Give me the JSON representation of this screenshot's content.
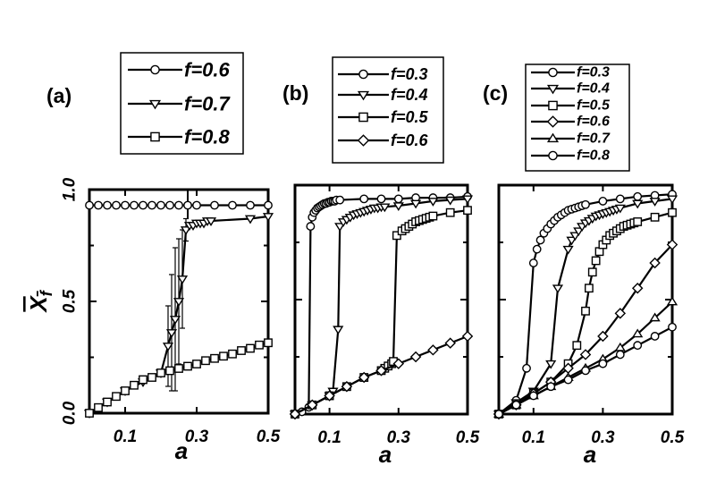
{
  "chart_data": [
    {
      "panel_label": "(a)",
      "type": "line",
      "xlabel": "a",
      "ylabel": "X_f",
      "xlim": [
        0,
        0.5
      ],
      "ylim": [
        0,
        1.0
      ],
      "xticks": [
        "0.1",
        "0.3",
        "0.5"
      ],
      "yticks": [
        "0.0",
        "0.5",
        "1.0"
      ],
      "legend": "top, outside the axes, boxed",
      "series": [
        {
          "name": "f=0.6",
          "marker": "circle",
          "x": [
            0,
            0.025,
            0.05,
            0.075,
            0.1,
            0.125,
            0.15,
            0.175,
            0.2,
            0.225,
            0.25,
            0.275,
            0.3,
            0.35,
            0.4,
            0.45,
            0.5
          ],
          "y": [
            0.93,
            0.93,
            0.93,
            0.93,
            0.93,
            0.93,
            0.93,
            0.93,
            0.93,
            0.93,
            0.93,
            0.93,
            0.93,
            0.93,
            0.93,
            0.93,
            0.93
          ]
        },
        {
          "name": "f=0.7",
          "marker": "triangle-down",
          "x": [
            0,
            0.05,
            0.1,
            0.15,
            0.2,
            0.22,
            0.23,
            0.24,
            0.25,
            0.26,
            0.27,
            0.28,
            0.29,
            0.3,
            0.31,
            0.32,
            0.33,
            0.34,
            0.45,
            0.5
          ],
          "y": [
            0,
            0.05,
            0.1,
            0.14,
            0.18,
            0.3,
            0.36,
            0.42,
            0.5,
            0.6,
            0.82,
            0.84,
            0.84,
            0.85,
            0.85,
            0.85,
            0.86,
            0.86,
            0.87,
            0.88
          ],
          "error": [
            0,
            0,
            0,
            0,
            0,
            0.18,
            0.26,
            0.32,
            0.28,
            0.22,
            0.05,
            0,
            0,
            0,
            0,
            0,
            0,
            0,
            0,
            0
          ]
        },
        {
          "name": "f=0.8",
          "marker": "square",
          "x": [
            0,
            0.025,
            0.05,
            0.075,
            0.1,
            0.125,
            0.15,
            0.175,
            0.2,
            0.225,
            0.25,
            0.275,
            0.3,
            0.325,
            0.35,
            0.375,
            0.4,
            0.425,
            0.45,
            0.475,
            0.5
          ],
          "y": [
            0,
            0.025,
            0.05,
            0.075,
            0.1,
            0.125,
            0.15,
            0.16,
            0.18,
            0.19,
            0.2,
            0.21,
            0.22,
            0.235,
            0.245,
            0.255,
            0.265,
            0.28,
            0.29,
            0.305,
            0.315
          ]
        }
      ]
    },
    {
      "panel_label": "(b)",
      "type": "line",
      "xlabel": "a",
      "xlim": [
        0,
        0.5
      ],
      "ylim": [
        0,
        1.0
      ],
      "xticks": [
        "0.1",
        "0.3",
        "0.5"
      ],
      "legend": "top, outside the axes, boxed",
      "series": [
        {
          "name": "f=0.3",
          "marker": "circle",
          "x": [
            0,
            0.02,
            0.04,
            0.045,
            0.05,
            0.055,
            0.06,
            0.065,
            0.07,
            0.075,
            0.08,
            0.085,
            0.09,
            0.095,
            0.1,
            0.105,
            0.11,
            0.115,
            0.12,
            0.13,
            0.2,
            0.25,
            0.3,
            0.35,
            0.4,
            0.45,
            0.5
          ],
          "y": [
            0,
            0.01,
            0.03,
            0.82,
            0.86,
            0.88,
            0.89,
            0.9,
            0.905,
            0.91,
            0.915,
            0.92,
            0.92,
            0.925,
            0.925,
            0.93,
            0.93,
            0.93,
            0.935,
            0.935,
            0.94,
            0.94,
            0.94,
            0.945,
            0.945,
            0.945,
            0.95
          ]
        },
        {
          "name": "f=0.4",
          "marker": "triangle-down",
          "x": [
            0,
            0.05,
            0.1,
            0.11,
            0.125,
            0.13,
            0.14,
            0.15,
            0.16,
            0.17,
            0.18,
            0.19,
            0.2,
            0.21,
            0.22,
            0.23,
            0.24,
            0.25,
            0.26,
            0.3,
            0.35,
            0.4,
            0.45,
            0.5
          ],
          "y": [
            0,
            0.04,
            0.08,
            0.1,
            0.37,
            0.82,
            0.84,
            0.85,
            0.86,
            0.87,
            0.875,
            0.88,
            0.885,
            0.89,
            0.895,
            0.9,
            0.9,
            0.905,
            0.905,
            0.91,
            0.92,
            0.93,
            0.935,
            0.94
          ]
        },
        {
          "name": "f=0.5",
          "marker": "square",
          "x": [
            0,
            0.05,
            0.1,
            0.15,
            0.2,
            0.25,
            0.26,
            0.27,
            0.28,
            0.285,
            0.295,
            0.31,
            0.32,
            0.33,
            0.34,
            0.35,
            0.36,
            0.37,
            0.38,
            0.39,
            0.4,
            0.45,
            0.5
          ],
          "y": [
            0,
            0.04,
            0.08,
            0.12,
            0.16,
            0.19,
            0.2,
            0.21,
            0.22,
            0.23,
            0.78,
            0.8,
            0.81,
            0.82,
            0.83,
            0.84,
            0.845,
            0.85,
            0.855,
            0.86,
            0.865,
            0.88,
            0.89
          ]
        },
        {
          "name": "f=0.6",
          "marker": "diamond",
          "x": [
            0,
            0.05,
            0.1,
            0.15,
            0.2,
            0.25,
            0.3,
            0.35,
            0.4,
            0.45,
            0.5
          ],
          "y": [
            0,
            0.04,
            0.08,
            0.12,
            0.16,
            0.19,
            0.22,
            0.25,
            0.28,
            0.31,
            0.34
          ]
        }
      ]
    },
    {
      "panel_label": "(c)",
      "type": "line",
      "xlabel": "a",
      "xlim": [
        0,
        0.5
      ],
      "ylim": [
        0,
        1.0
      ],
      "xticks": [
        "0.1",
        "0.3",
        "0.5"
      ],
      "legend": "top, outside the axes, boxed",
      "series": [
        {
          "name": "f=0.3",
          "marker": "circle",
          "x": [
            0,
            0.05,
            0.08,
            0.1,
            0.11,
            0.12,
            0.13,
            0.14,
            0.15,
            0.16,
            0.17,
            0.18,
            0.19,
            0.2,
            0.21,
            0.22,
            0.23,
            0.24,
            0.25,
            0.3,
            0.35,
            0.4,
            0.45,
            0.5
          ],
          "y": [
            0,
            0.06,
            0.2,
            0.66,
            0.72,
            0.76,
            0.79,
            0.81,
            0.83,
            0.845,
            0.86,
            0.87,
            0.88,
            0.89,
            0.895,
            0.9,
            0.905,
            0.91,
            0.915,
            0.93,
            0.94,
            0.95,
            0.955,
            0.96
          ]
        },
        {
          "name": "f=0.4",
          "marker": "triangle-down",
          "x": [
            0,
            0.05,
            0.1,
            0.15,
            0.17,
            0.2,
            0.21,
            0.22,
            0.23,
            0.24,
            0.25,
            0.26,
            0.27,
            0.28,
            0.29,
            0.3,
            0.31,
            0.32,
            0.33,
            0.34,
            0.35,
            0.4,
            0.45,
            0.5
          ],
          "y": [
            0,
            0.05,
            0.1,
            0.22,
            0.55,
            0.72,
            0.76,
            0.78,
            0.8,
            0.82,
            0.835,
            0.845,
            0.855,
            0.865,
            0.87,
            0.875,
            0.88,
            0.885,
            0.89,
            0.895,
            0.9,
            0.92,
            0.93,
            0.94
          ]
        },
        {
          "name": "f=0.5",
          "marker": "square",
          "x": [
            0,
            0.05,
            0.1,
            0.15,
            0.2,
            0.225,
            0.25,
            0.26,
            0.27,
            0.28,
            0.29,
            0.3,
            0.31,
            0.32,
            0.33,
            0.34,
            0.35,
            0.36,
            0.37,
            0.38,
            0.39,
            0.4,
            0.45,
            0.5
          ],
          "y": [
            0,
            0.04,
            0.09,
            0.14,
            0.22,
            0.3,
            0.45,
            0.55,
            0.62,
            0.67,
            0.71,
            0.74,
            0.76,
            0.78,
            0.79,
            0.8,
            0.81,
            0.82,
            0.825,
            0.83,
            0.835,
            0.84,
            0.86,
            0.88
          ]
        },
        {
          "name": "f=0.6",
          "marker": "diamond",
          "x": [
            0,
            0.05,
            0.1,
            0.15,
            0.2,
            0.25,
            0.3,
            0.35,
            0.4,
            0.45,
            0.5
          ],
          "y": [
            0,
            0.04,
            0.09,
            0.14,
            0.2,
            0.26,
            0.34,
            0.44,
            0.55,
            0.66,
            0.74
          ]
        },
        {
          "name": "f=0.7",
          "marker": "triangle-up",
          "x": [
            0,
            0.05,
            0.1,
            0.15,
            0.2,
            0.25,
            0.3,
            0.35,
            0.4,
            0.45,
            0.5
          ],
          "y": [
            0,
            0.04,
            0.08,
            0.12,
            0.16,
            0.2,
            0.24,
            0.29,
            0.35,
            0.42,
            0.49
          ]
        },
        {
          "name": "f=0.8",
          "marker": "circle",
          "x": [
            0,
            0.05,
            0.1,
            0.15,
            0.2,
            0.25,
            0.3,
            0.35,
            0.4,
            0.45,
            0.5
          ],
          "y": [
            0,
            0.04,
            0.08,
            0.12,
            0.15,
            0.19,
            0.22,
            0.26,
            0.3,
            0.34,
            0.38
          ]
        }
      ]
    }
  ]
}
